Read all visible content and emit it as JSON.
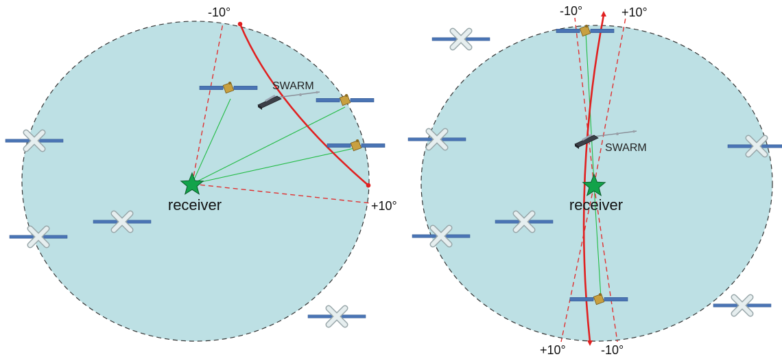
{
  "left_panel": {
    "angle_minus": "-10°",
    "angle_plus": "+10°",
    "swarm_label": "SWARM",
    "receiver_label": "receiver"
  },
  "right_panel": {
    "angle_top_minus": "-10°",
    "angle_top_plus": "+10°",
    "angle_bottom_plus": "+10°",
    "angle_bottom_minus": "-10°",
    "swarm_label": "SWARM",
    "receiver_label": "receiver"
  },
  "colors": {
    "sky": "#bde0e4",
    "orbit_arc": "#e02020",
    "cone_line": "#e03030",
    "link_line": "#22bb44",
    "receiver_star": "#12a34a",
    "panel": "#4a74b4",
    "blocked_sat": "#c9d6d8",
    "active_sat_body": "#c8a040",
    "swarm_body": "#454a52"
  },
  "icons": {
    "receiver": "star-icon",
    "gnss_satellite": "satellite-icon",
    "blocked_satellite": "crossed-satellite-icon",
    "swarm_satellite": "swarm-satellite-icon"
  }
}
